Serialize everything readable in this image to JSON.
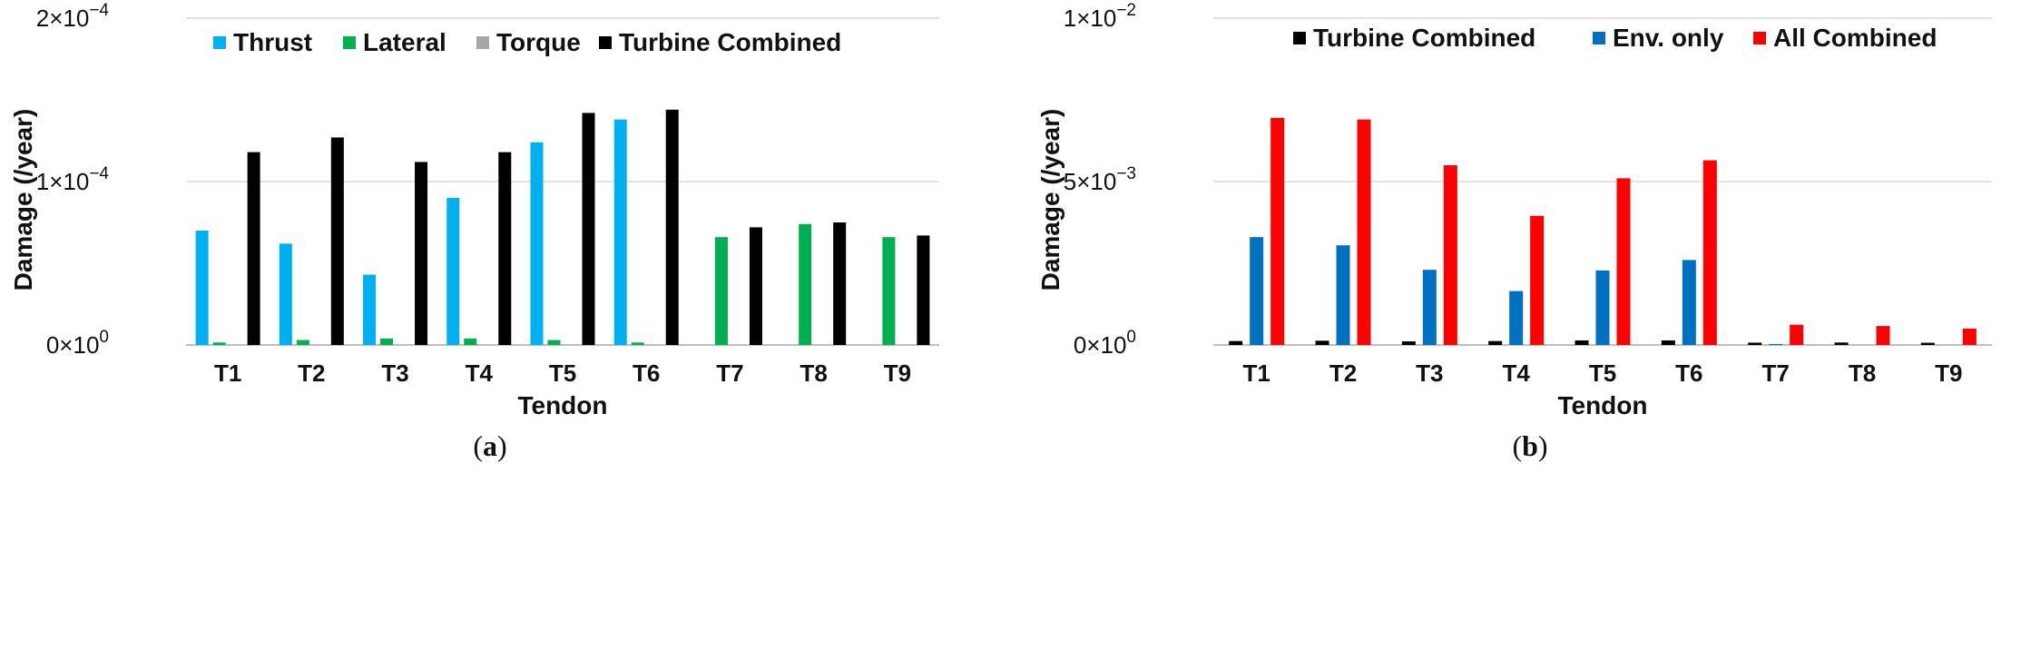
{
  "chart_data": [
    {
      "id": "a",
      "type": "bar",
      "caption_letter": "a",
      "xlabel": "Tendon",
      "ylabel": "Damage (/year)",
      "ylim": [
        0,
        0.0002
      ],
      "yticks": [
        {
          "value": 0,
          "mantissa": "0×10",
          "exp": "0"
        },
        {
          "value": 0.0001,
          "mantissa": "1×10",
          "exp": "−4"
        },
        {
          "value": 0.0002,
          "mantissa": "2×10",
          "exp": "−4"
        }
      ],
      "grid": true,
      "legend_position": "top",
      "categories": [
        "T1",
        "T2",
        "T3",
        "T4",
        "T5",
        "T6",
        "T7",
        "T8",
        "T9"
      ],
      "series": [
        {
          "name": "Thrust",
          "color": "#00b0f0",
          "values": [
            7e-05,
            6.2e-05,
            4.3e-05,
            9e-05,
            0.000124,
            0.000138,
            0,
            0,
            0
          ]
        },
        {
          "name": "Lateral",
          "color": "#00b050",
          "values": [
            1.5e-06,
            3e-06,
            4e-06,
            4e-06,
            3e-06,
            1.5e-06,
            6.6e-05,
            7.4e-05,
            6.6e-05
          ]
        },
        {
          "name": "Torque",
          "color": "#a6a6a6",
          "values": [
            0,
            0,
            0,
            0,
            0,
            0,
            0,
            0,
            0
          ]
        },
        {
          "name": "Turbine Combined",
          "color": "#000000",
          "values": [
            0.000118,
            0.000127,
            0.000112,
            0.000118,
            0.000142,
            0.000144,
            7.2e-05,
            7.5e-05,
            6.7e-05
          ]
        }
      ]
    },
    {
      "id": "b",
      "type": "bar",
      "caption_letter": "b",
      "xlabel": "Tendon",
      "ylabel": "Damage (/year)",
      "ylim": [
        0,
        0.01
      ],
      "yticks": [
        {
          "value": 0,
          "mantissa": "0×10",
          "exp": "0"
        },
        {
          "value": 0.005,
          "mantissa": "5×10",
          "exp": "−3"
        },
        {
          "value": 0.01,
          "mantissa": "1×10",
          "exp": "−2"
        }
      ],
      "grid": true,
      "legend_position": "top",
      "categories": [
        "T1",
        "T2",
        "T3",
        "T4",
        "T5",
        "T6",
        "T7",
        "T8",
        "T9"
      ],
      "series": [
        {
          "name": "Turbine Combined",
          "color": "#000000",
          "values": [
            0.00012,
            0.00013,
            0.00011,
            0.00012,
            0.00014,
            0.00014,
            7e-05,
            7.5e-05,
            6.7e-05
          ]
        },
        {
          "name": "Env. only",
          "color": "#0070c0",
          "values": [
            0.0033,
            0.00305,
            0.0023,
            0.00165,
            0.00228,
            0.0026,
            3e-05,
            0,
            0
          ]
        },
        {
          "name": "All Combined",
          "color": "#ff0000",
          "values": [
            0.00695,
            0.0069,
            0.0055,
            0.00395,
            0.0051,
            0.00565,
            0.00062,
            0.00058,
            0.0005
          ]
        }
      ]
    }
  ]
}
